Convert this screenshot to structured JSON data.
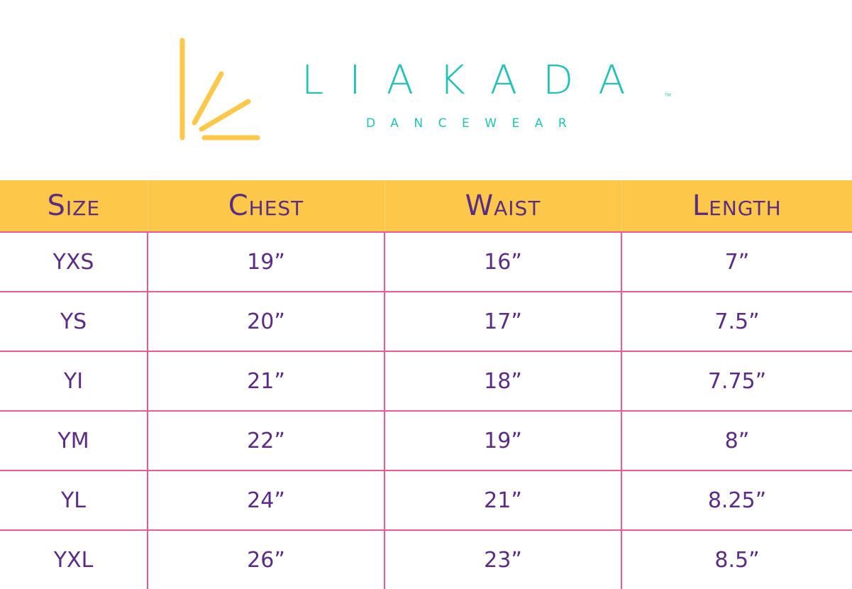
{
  "brand": {
    "name": "LIAKADA",
    "tagline": "DANCEWEAR",
    "trademark": "TM",
    "colors": {
      "primary": "#22C2B4",
      "accent": "#FDC84A"
    }
  },
  "table": {
    "colors": {
      "header_bg": "#FDC84A",
      "text": "#5B2C83",
      "grid": "#EE5B94"
    },
    "headers": [
      "Size",
      "Chest",
      "Waist",
      "Length"
    ],
    "rows": [
      [
        "YXS",
        "19”",
        "16”",
        "7”"
      ],
      [
        "YS",
        "20”",
        "17”",
        "7.5”"
      ],
      [
        "YI",
        "21”",
        "18”",
        "7.75”"
      ],
      [
        "YM",
        "22”",
        "19”",
        "8”"
      ],
      [
        "YL",
        "24”",
        "21”",
        "8.25”"
      ],
      [
        "YXL",
        "26”",
        "23”",
        "8.5”"
      ]
    ]
  }
}
